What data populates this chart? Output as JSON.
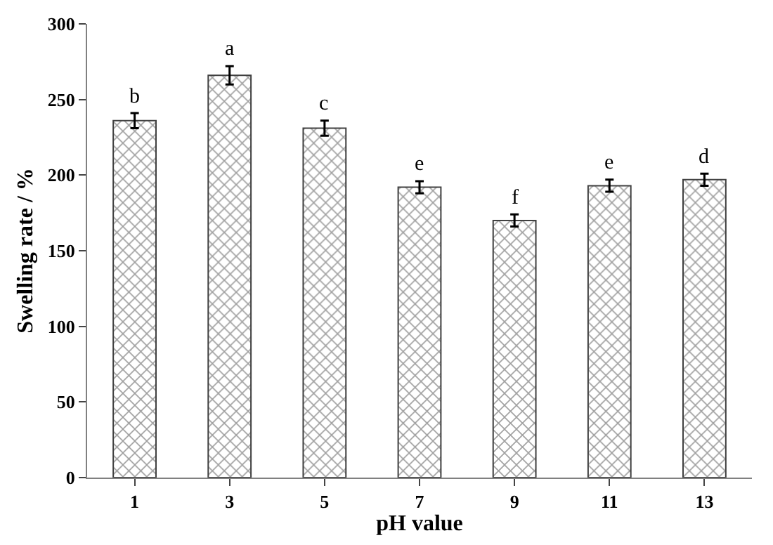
{
  "chart_data": {
    "type": "bar",
    "xlabel": "pH value",
    "ylabel": "Swelling rate / %",
    "x": [
      1,
      3,
      5,
      7,
      9,
      11,
      13
    ],
    "values": [
      236,
      266,
      231,
      192,
      170,
      193,
      197
    ],
    "errors": [
      5,
      6,
      5,
      4,
      4,
      4,
      4
    ],
    "color": "#404040",
    "xlim": [
      0,
      14
    ],
    "xticks": [
      1,
      3,
      5,
      7,
      9,
      11,
      13
    ],
    "ylim": [
      0,
      300
    ],
    "yticks": [
      0,
      50,
      100,
      150,
      200,
      250,
      300
    ],
    "annotations": [
      {
        "text": "b",
        "x": 1,
        "y": 241
      },
      {
        "text": "a",
        "x": 3,
        "y": 272
      },
      {
        "text": "c",
        "x": 5,
        "y": 236
      },
      {
        "text": "e",
        "x": 7,
        "y": 196
      },
      {
        "text": "f",
        "x": 9,
        "y": 174
      },
      {
        "text": "e",
        "x": 11,
        "y": 197
      },
      {
        "text": "d",
        "x": 13,
        "y": 201
      }
    ]
  }
}
